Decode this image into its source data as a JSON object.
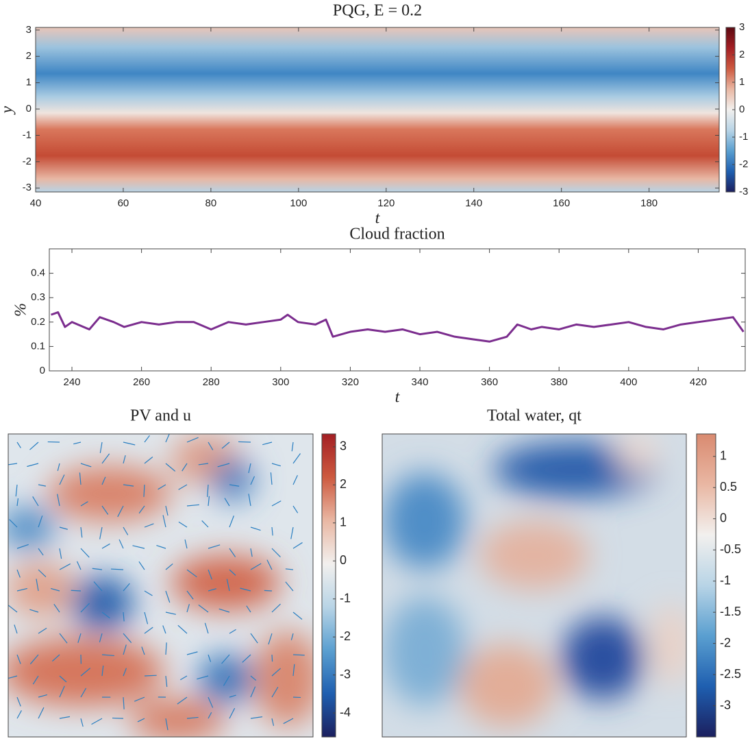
{
  "chart_data": [
    {
      "type": "heatmap",
      "title": "PQG, E = 0.2",
      "xlabel": "t",
      "ylabel": "y",
      "xlim": [
        40,
        196
      ],
      "xticks": [
        40,
        60,
        80,
        100,
        120,
        140,
        160,
        180
      ],
      "ylim": [
        -3.15,
        3.1
      ],
      "yticks": [
        -3,
        -2,
        -1,
        0,
        1,
        2,
        3
      ],
      "clim": [
        -3,
        3
      ],
      "cticks": [
        -3,
        -2,
        -1,
        0,
        1,
        2,
        3
      ],
      "colormap": [
        "#1b1f5e",
        "#1f5fb0",
        "#5a9fd0",
        "#b8d4e6",
        "#f2f0ee",
        "#e9b7a3",
        "#cd5a40",
        "#a31f24",
        "#5c0a12"
      ]
    },
    {
      "type": "line",
      "title": "Cloud fraction",
      "xlabel": "t",
      "ylabel": "%",
      "xlim": [
        233.5,
        433.5
      ],
      "xticks": [
        240,
        260,
        280,
        300,
        320,
        340,
        360,
        380,
        400,
        420
      ],
      "ylim": [
        0,
        0.5
      ],
      "yticks": [
        0,
        0.1,
        0.2,
        0.3,
        0.4
      ],
      "color": "#7b2d8e",
      "x": [
        234,
        236,
        238,
        240,
        245,
        248,
        252,
        255,
        260,
        265,
        270,
        275,
        280,
        285,
        290,
        295,
        300,
        302,
        305,
        310,
        313,
        315,
        320,
        325,
        330,
        335,
        340,
        345,
        350,
        355,
        360,
        365,
        368,
        372,
        375,
        380,
        385,
        390,
        395,
        400,
        405,
        410,
        415,
        420,
        425,
        430,
        433
      ],
      "values": [
        0.23,
        0.24,
        0.18,
        0.2,
        0.17,
        0.22,
        0.2,
        0.18,
        0.2,
        0.19,
        0.2,
        0.2,
        0.17,
        0.2,
        0.19,
        0.2,
        0.21,
        0.23,
        0.2,
        0.19,
        0.21,
        0.14,
        0.16,
        0.17,
        0.16,
        0.17,
        0.15,
        0.16,
        0.14,
        0.13,
        0.12,
        0.14,
        0.19,
        0.17,
        0.18,
        0.17,
        0.19,
        0.18,
        0.19,
        0.2,
        0.18,
        0.17,
        0.19,
        0.2,
        0.21,
        0.22,
        0.16
      ]
    },
    {
      "type": "field",
      "title": "PV and u",
      "clim": [
        -4.63,
        3.34
      ],
      "cticks": [
        -4,
        -3,
        -2,
        -1,
        0,
        1,
        2,
        3
      ],
      "colormap": [
        "#1b1f5e",
        "#1f5fb0",
        "#5a9fd0",
        "#b8d4e6",
        "#f2f0ee",
        "#e9b7a3",
        "#cd5a40",
        "#a31f24"
      ]
    },
    {
      "type": "field",
      "title": "Total water, qt",
      "clim": [
        -3.5,
        1.36
      ],
      "cticks": [
        -3,
        -2.5,
        -2,
        -1.5,
        -1,
        -0.5,
        0,
        0.5,
        1
      ],
      "colormap": [
        "#1b1f5e",
        "#1f5fb0",
        "#5a9fd0",
        "#b8d4e6",
        "#f2f0ee",
        "#e9b7a3",
        "#d98a70"
      ]
    }
  ]
}
